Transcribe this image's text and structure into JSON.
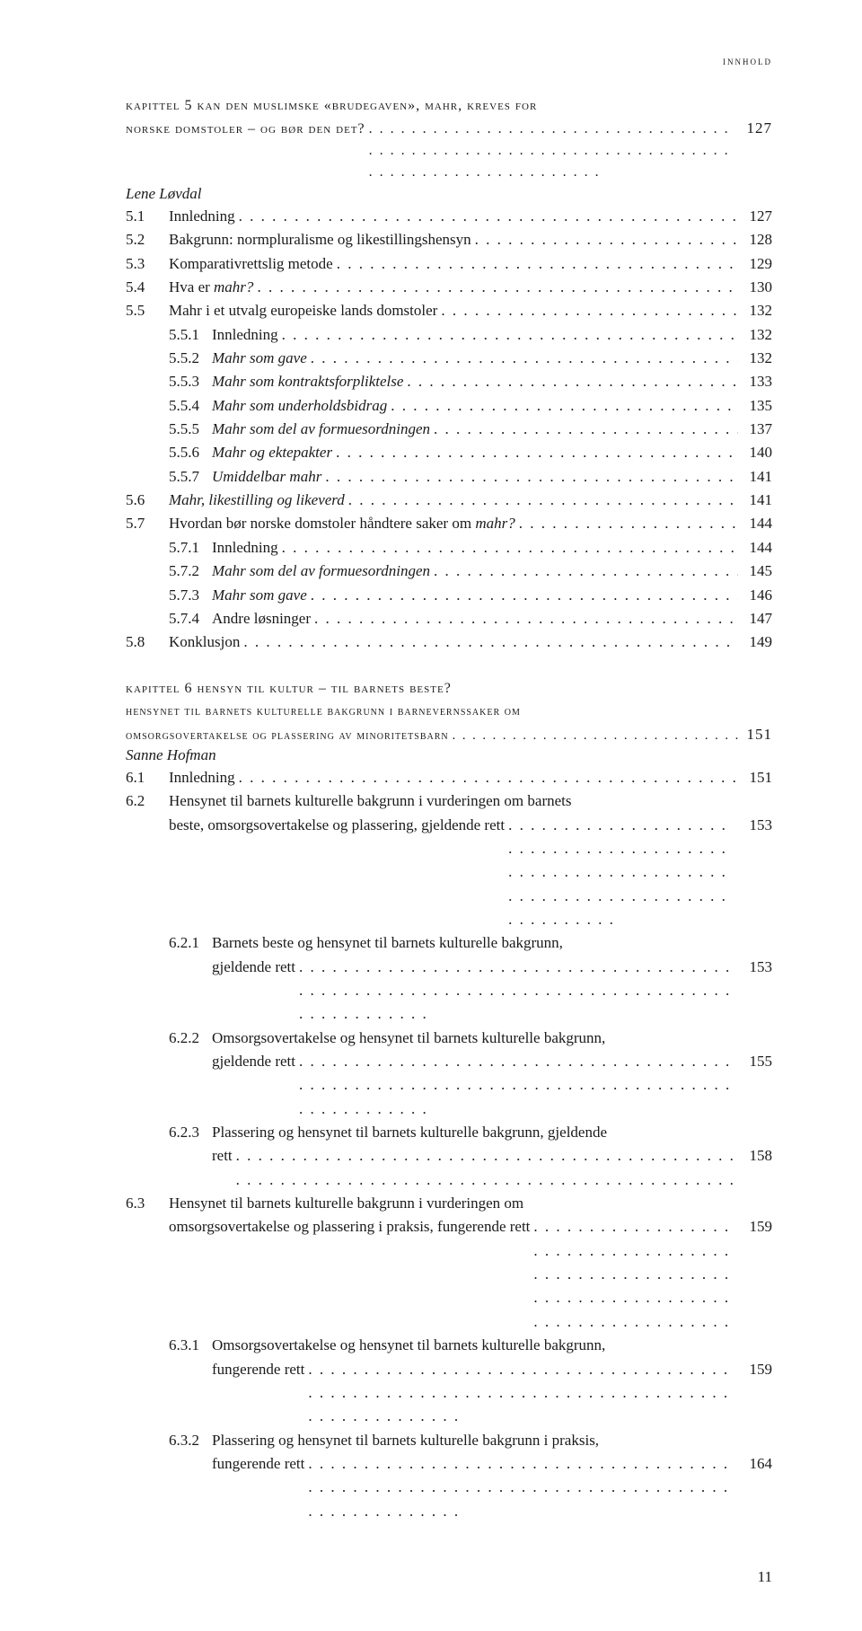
{
  "header": "innhold",
  "chapter5": {
    "line1": "kapittel 5  kan den muslimske «brudegaven», mahr, kreves for",
    "line2": "norske domstoler – og bør den det?",
    "page": "127",
    "author": "Lene Løvdal"
  },
  "toc5": [
    {
      "lvl": 1,
      "num": "5.1",
      "label": "Innledning",
      "page": "127"
    },
    {
      "lvl": 1,
      "num": "5.2",
      "label": "Bakgrunn: normpluralisme og likestillingshensyn",
      "page": "128"
    },
    {
      "lvl": 1,
      "num": "5.3",
      "label": "Komparativrettslig metode",
      "page": "129"
    },
    {
      "lvl": 1,
      "num": "5.4",
      "label": "Hva er ",
      "italicTail": "mahr?",
      "page": "130"
    },
    {
      "lvl": 1,
      "num": "5.5",
      "label": "Mahr i et utvalg europeiske lands domstoler",
      "page": "132"
    },
    {
      "lvl": 2,
      "num": "5.5.1",
      "label": "Innledning",
      "page": "132"
    },
    {
      "lvl": 2,
      "num": "5.5.2",
      "italic": true,
      "label": "Mahr som gave",
      "page": "132"
    },
    {
      "lvl": 2,
      "num": "5.5.3",
      "italic": true,
      "label": "Mahr som kontraktsforpliktelse",
      "page": "133"
    },
    {
      "lvl": 2,
      "num": "5.5.4",
      "italic": true,
      "label": "Mahr som underholdsbidrag",
      "page": "135"
    },
    {
      "lvl": 2,
      "num": "5.5.5",
      "italic": true,
      "label": "Mahr som del av formuesordningen",
      "page": "137"
    },
    {
      "lvl": 2,
      "num": "5.5.6",
      "italic": true,
      "label": "Mahr og ektepakter",
      "page": "140"
    },
    {
      "lvl": 2,
      "num": "5.5.7",
      "italic": true,
      "label": "Umiddelbar mahr",
      "page": "141"
    },
    {
      "lvl": 1,
      "num": "5.6",
      "italic": true,
      "label": "Mahr, likestilling og likeverd",
      "page": "141"
    },
    {
      "lvl": 1,
      "num": "5.7",
      "label": "Hvordan bør norske domstoler håndtere saker om ",
      "italicTail": "mahr?",
      "page": "144"
    },
    {
      "lvl": 2,
      "num": "5.7.1",
      "label": "Innledning",
      "page": "144"
    },
    {
      "lvl": 2,
      "num": "5.7.2",
      "italic": true,
      "label": "Mahr som del av formuesordningen",
      "page": "145"
    },
    {
      "lvl": 2,
      "num": "5.7.3",
      "italic": true,
      "label": "Mahr som gave",
      "page": "146"
    },
    {
      "lvl": 2,
      "num": "5.7.4",
      "label": "Andre løsninger",
      "page": "147"
    },
    {
      "lvl": 1,
      "num": "5.8",
      "label": "Konklusjon",
      "page": "149"
    }
  ],
  "chapter6": {
    "title": "kapittel 6  hensyn til kultur – til barnets beste?",
    "sub1": "hensynet til barnets kulturelle bakgrunn i barnevernssaker om",
    "sub2": "omsorgsovertakelse og plassering av minoritetsbarn",
    "page": "151",
    "author": "Sanne Hofman"
  },
  "toc6": [
    {
      "lvl": 1,
      "num": "6.1",
      "label": "Innledning",
      "page": "151"
    },
    {
      "lvl": 1,
      "num": "6.2",
      "multiline": true,
      "line1": "Hensynet til barnets kulturelle bakgrunn i vurderingen om barnets",
      "line2": "beste, omsorgsovertakelse og plassering, gjeldende rett",
      "page": "153"
    },
    {
      "lvl": 2,
      "num": "6.2.1",
      "multiline": true,
      "line1": "Barnets beste og hensynet til barnets kulturelle bakgrunn,",
      "line2": "gjeldende rett",
      "page": "153"
    },
    {
      "lvl": 2,
      "num": "6.2.2",
      "multiline": true,
      "line1": "Omsorgsovertakelse og hensynet til barnets kulturelle bakgrunn,",
      "line2": "gjeldende rett",
      "page": "155"
    },
    {
      "lvl": 2,
      "num": "6.2.3",
      "multiline": true,
      "line1": "Plassering og hensynet til barnets kulturelle bakgrunn, gjeldende",
      "line2": "rett",
      "page": "158"
    },
    {
      "lvl": 1,
      "num": "6.3",
      "multiline": true,
      "line1": "Hensynet til barnets kulturelle bakgrunn i vurderingen om",
      "line2": "omsorgsovertakelse og plassering i praksis, fungerende rett",
      "page": "159"
    },
    {
      "lvl": 2,
      "num": "6.3.1",
      "multiline": true,
      "line1": "Omsorgsovertakelse og hensynet til barnets kulturelle bakgrunn,",
      "line2": "fungerende rett",
      "page": "159"
    },
    {
      "lvl": 2,
      "num": "6.3.2",
      "multiline": true,
      "line1": "Plassering og hensynet til barnets kulturelle bakgrunn i praksis,",
      "line2": "fungerende rett",
      "page": "164"
    }
  ],
  "footerPage": "11"
}
